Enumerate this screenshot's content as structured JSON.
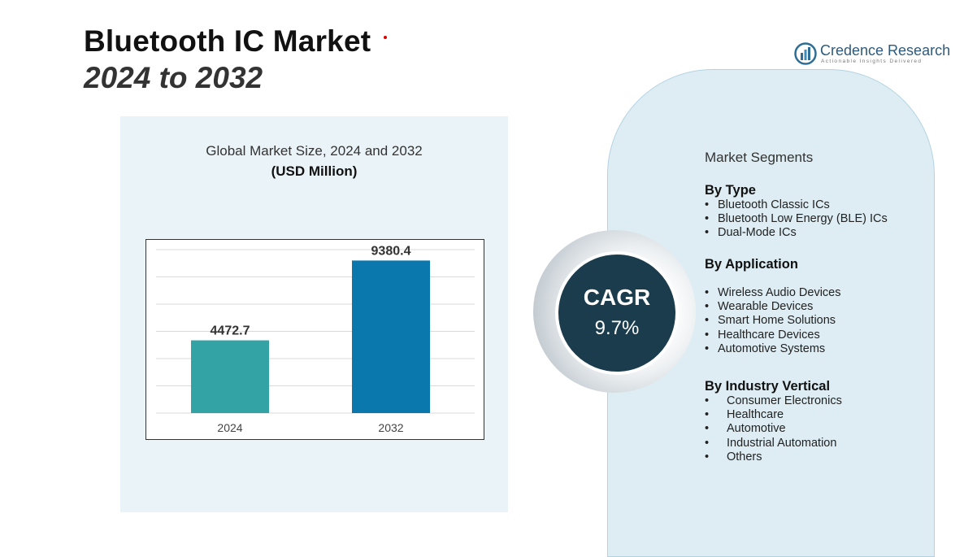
{
  "header": {
    "title_line1": "Bluetooth IC Market",
    "title_line2": "2024 to 2032"
  },
  "logo": {
    "name": "Credence Research",
    "tagline": "Actionable Insights Delivered"
  },
  "chart_data": {
    "type": "bar",
    "title": "Global Market Size, 2024 and 2032",
    "subtitle": "(USD Million)",
    "categories": [
      "2024",
      "2032"
    ],
    "values": [
      4472.7,
      9380.4
    ],
    "value_labels": [
      "4472.7",
      "9380.4"
    ],
    "colors": [
      "#34a3a5",
      "#0a78ad"
    ],
    "ylim": [
      0,
      10000
    ],
    "grid": true
  },
  "cagr": {
    "label": "CAGR",
    "value": "9.7%"
  },
  "segments": {
    "title": "Market Segments",
    "by_type": {
      "heading": "By Type",
      "items": [
        "Bluetooth Classic ICs",
        "Bluetooth Low Energy (BLE) ICs",
        "Dual-Mode ICs"
      ]
    },
    "by_application": {
      "heading": "By Application",
      "items": [
        "Wireless Audio Devices",
        "Wearable Devices",
        "Smart Home Solutions",
        "Healthcare Devices",
        "Automotive Systems"
      ]
    },
    "by_industry": {
      "heading": "By Industry Vertical",
      "items": [
        "Consumer Electronics",
        "Healthcare",
        "Automotive",
        "Industrial Automation",
        "Others"
      ]
    }
  }
}
